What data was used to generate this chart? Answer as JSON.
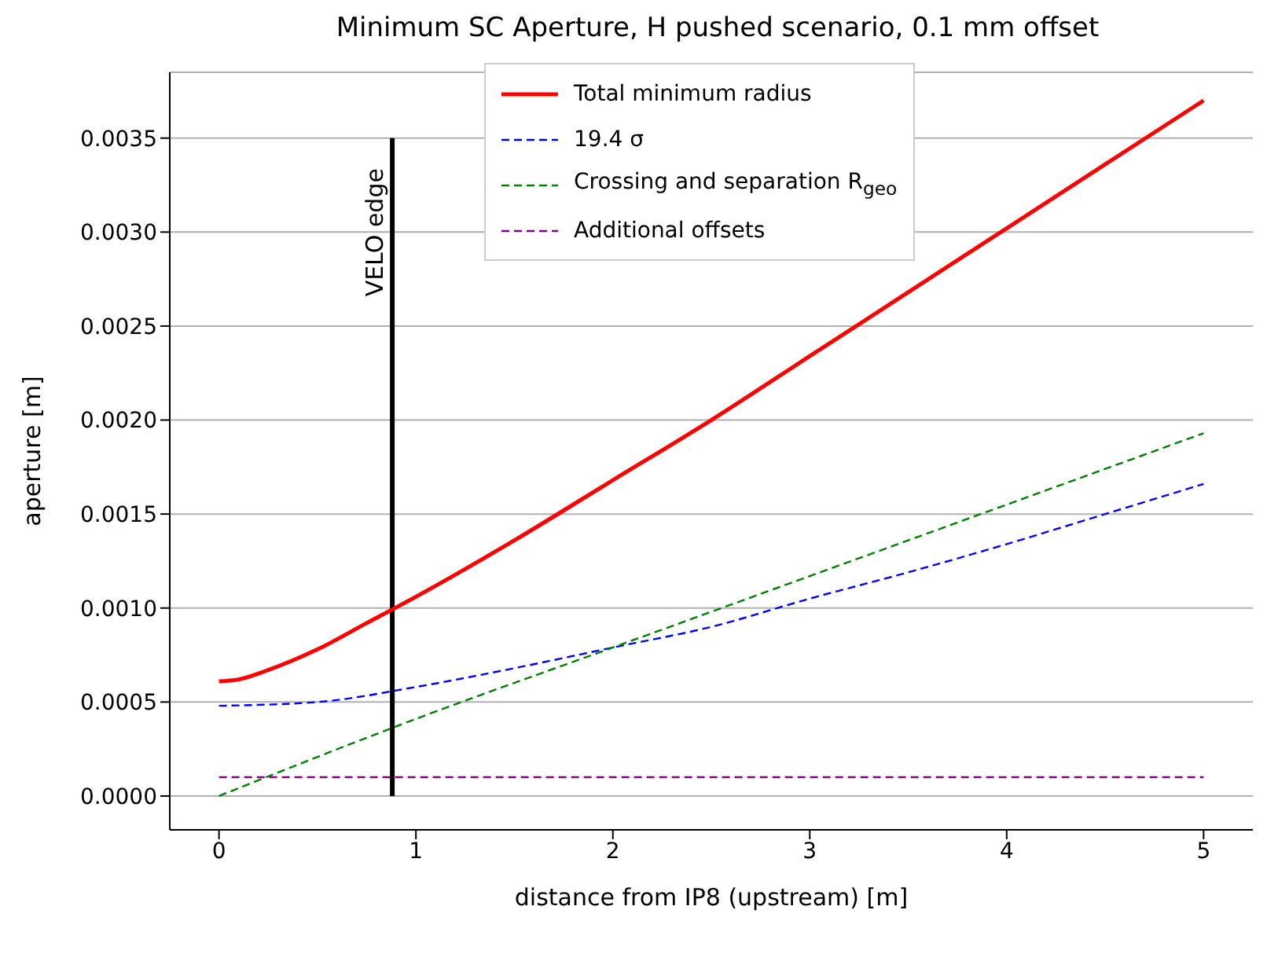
{
  "chart_data": {
    "type": "line",
    "title": "Minimum SC Aperture, H pushed scenario, 0.1 mm offset",
    "xlabel": "distance from IP8 (upstream) [m]",
    "ylabel": "aperture [m]",
    "xlim": [
      -0.25,
      5.25
    ],
    "xticks": [
      0,
      1,
      2,
      3,
      4,
      5
    ],
    "ylim": [
      -0.00018,
      0.00385
    ],
    "yticks": [
      {
        "value": 0,
        "label": "0.0000"
      },
      {
        "value": 0.0005,
        "label": "0.0005"
      },
      {
        "value": 0.001,
        "label": "0.0010"
      },
      {
        "value": 0.0015,
        "label": "0.0015"
      },
      {
        "value": 0.002,
        "label": "0.0020"
      },
      {
        "value": 0.0025,
        "label": "0.0025"
      },
      {
        "value": 0.003,
        "label": "0.0030"
      },
      {
        "value": 0.0035,
        "label": "0.0035"
      }
    ],
    "grid": "y",
    "legend": "top",
    "marker": "none",
    "series": [
      {
        "name": "Total minimum radius",
        "color": "#ff0000",
        "line_style": "solid",
        "x": [
          0,
          0.1,
          0.25,
          0.5,
          0.75,
          1,
          1.5,
          2,
          2.5,
          3,
          3.5,
          4,
          4.5,
          5
        ],
        "values": [
          0.00061,
          0.00062,
          0.00067,
          0.00078,
          0.00092,
          0.00106,
          0.00136,
          0.00168,
          0.002,
          0.00234,
          0.00268,
          0.00302,
          0.00336,
          0.0037
        ]
      },
      {
        "name": "19.4 σ",
        "color": "#0000ff",
        "line_style": "dashed",
        "x": [
          0,
          0.5,
          1,
          1.5,
          2,
          2.5,
          3,
          3.5,
          4,
          4.5,
          5
        ],
        "values": [
          0.00048,
          0.0005,
          0.00058,
          0.00068,
          0.00079,
          0.0009,
          0.00105,
          0.00119,
          0.00134,
          0.0015,
          0.00166
        ]
      },
      {
        "name": "Crossing and separation R$_{geo}$",
        "color": "#008000",
        "line_style": "dashed",
        "x": [
          0,
          1,
          2,
          3,
          4,
          5
        ],
        "values": [
          0,
          0.00041,
          0.00079,
          0.00117,
          0.00155,
          0.00193
        ]
      },
      {
        "name": "Additional offsets",
        "color": "#800080",
        "line_style": "dashed",
        "x": [
          0,
          5
        ],
        "values": [
          0.0001,
          0.0001
        ]
      }
    ],
    "ref_lines": [
      {
        "axis": "x",
        "value": 0.88,
        "label": "VELO edge",
        "color": "#000000",
        "line_style": "solid"
      }
    ]
  }
}
